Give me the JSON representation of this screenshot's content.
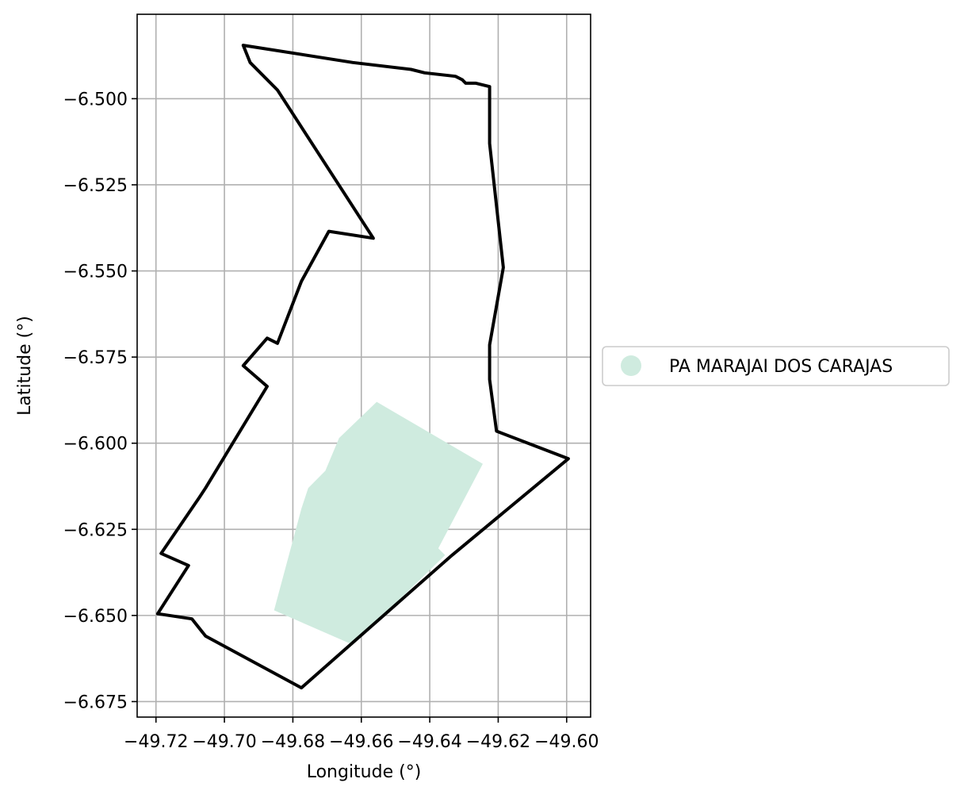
{
  "chart_data": {
    "type": "map",
    "xlabel": "Longitude (°)",
    "ylabel": "Latitude (°)",
    "xlim": [
      -49.7255,
      -49.593
    ],
    "ylim": [
      -6.6795,
      -6.4755
    ],
    "xticks": [
      -49.72,
      -49.7,
      -49.68,
      -49.66,
      -49.64,
      -49.62,
      -49.6
    ],
    "xtick_labels": [
      "−49.72",
      "−49.70",
      "−49.68",
      "−49.66",
      "−49.64",
      "−49.62",
      "−49.60"
    ],
    "yticks": [
      -6.5,
      -6.525,
      -6.55,
      -6.575,
      -6.6,
      -6.625,
      -6.65,
      -6.675
    ],
    "ytick_labels": [
      "−6.500",
      "−6.525",
      "−6.550",
      "−6.575",
      "−6.600",
      "−6.625",
      "−6.650",
      "−6.675"
    ],
    "grid": true,
    "legend": {
      "placement": "center-right-outside",
      "entries": [
        {
          "label": "PA MARAJAI DOS CARAJAS",
          "color": "#cfebdf",
          "marker": "circle"
        }
      ]
    },
    "fill_polygon": {
      "name": "PA MARAJAI DOS CARAJAS",
      "color": "#cfebdf",
      "points": [
        [
          -49.6555,
          -6.588
        ],
        [
          -49.6665,
          -6.5985
        ],
        [
          -49.6705,
          -6.608
        ],
        [
          -49.6755,
          -6.613
        ],
        [
          -49.6775,
          -6.619
        ],
        [
          -49.6855,
          -6.6485
        ],
        [
          -49.6625,
          -6.6585
        ],
        [
          -49.6355,
          -6.6325
        ],
        [
          -49.6375,
          -6.6305
        ],
        [
          -49.6245,
          -6.606
        ]
      ]
    },
    "boundary_outline": {
      "color": "#000000",
      "points": [
        [
          -49.6945,
          -6.4845
        ],
        [
          -49.6625,
          -6.4895
        ],
        [
          -49.6455,
          -6.4915
        ],
        [
          -49.6415,
          -6.4925
        ],
        [
          -49.6325,
          -6.4935
        ],
        [
          -49.6305,
          -6.4945
        ],
        [
          -49.6295,
          -6.4955
        ],
        [
          -49.6265,
          -6.4955
        ],
        [
          -49.6225,
          -6.4965
        ],
        [
          -49.6225,
          -6.513
        ],
        [
          -49.6185,
          -6.549
        ],
        [
          -49.6225,
          -6.5715
        ],
        [
          -49.6225,
          -6.5815
        ],
        [
          -49.6205,
          -6.5965
        ],
        [
          -49.5995,
          -6.6045
        ],
        [
          -49.6335,
          -6.6325
        ],
        [
          -49.6775,
          -6.671
        ],
        [
          -49.7055,
          -6.656
        ],
        [
          -49.7095,
          -6.651
        ],
        [
          -49.7195,
          -6.6495
        ],
        [
          -49.7105,
          -6.6355
        ],
        [
          -49.7185,
          -6.632
        ],
        [
          -49.7075,
          -6.616
        ],
        [
          -49.7055,
          -6.613
        ],
        [
          -49.6875,
          -6.5835
        ],
        [
          -49.6945,
          -6.5775
        ],
        [
          -49.6875,
          -6.5695
        ],
        [
          -49.6845,
          -6.571
        ],
        [
          -49.6775,
          -6.553
        ],
        [
          -49.6695,
          -6.5385
        ],
        [
          -49.6565,
          -6.5405
        ],
        [
          -49.6845,
          -6.4975
        ],
        [
          -49.6925,
          -6.4895
        ],
        [
          -49.6945,
          -6.4845
        ]
      ]
    }
  }
}
